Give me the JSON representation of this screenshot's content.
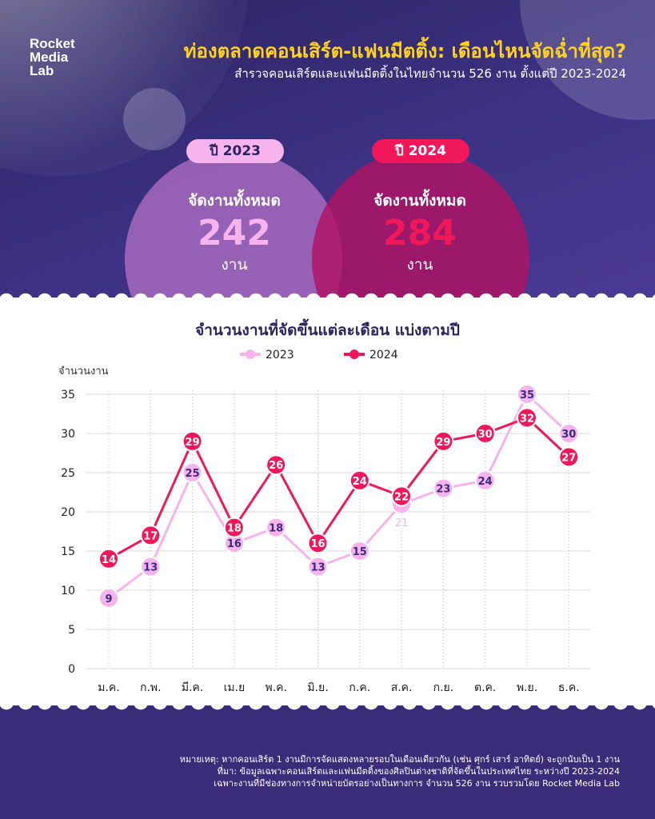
{
  "brand": {
    "logo_lines": [
      "Rocket",
      "Media",
      "Lab"
    ]
  },
  "header": {
    "title": "ท่องตลาดคอนเสิร์ต-แฟนมีตติ้ง: เดือนไหนจัดฉ่ำที่สุด?",
    "subtitle": "สำรวจคอนเสิร์ตและแฟนมีตติ้งในไทยจำนวน 526 งาน ตั้งแต่ปี 2023-2024"
  },
  "summary": [
    {
      "year_label": "ปี 2023",
      "label": "จัดงานทั้งหมด",
      "total": "242",
      "unit": "งาน",
      "number_color": "#f7b3ee"
    },
    {
      "year_label": "ปี 2024",
      "label": "จัดงานทั้งหมด",
      "total": "284",
      "unit": "งาน",
      "number_color": "#f0185a"
    }
  ],
  "chart_data": {
    "type": "line",
    "title": "จำนวนงานที่จัดขึ้นแต่ละเดือน แบ่งตามปี",
    "ylabel": "จำนวนงาน",
    "xlabel": "",
    "ylim": [
      0,
      35
    ],
    "yticks": [
      0,
      5,
      10,
      15,
      20,
      25,
      30,
      35
    ],
    "grid": true,
    "legend": "top-center",
    "categories": [
      "ม.ค.",
      "ก.พ.",
      "มี.ค.",
      "เม.ย",
      "พ.ค.",
      "มิ.ย.",
      "ก.ค.",
      "ส.ค.",
      "ก.ย.",
      "ต.ค.",
      "พ.ย.",
      "ธ.ค."
    ],
    "series": [
      {
        "name": "2023",
        "color": "#f7b3ee",
        "values": [
          9,
          13,
          25,
          16,
          18,
          13,
          15,
          21,
          23,
          24,
          35,
          30
        ]
      },
      {
        "name": "2024",
        "color": "#f0185a",
        "values": [
          14,
          17,
          29,
          18,
          26,
          16,
          24,
          22,
          29,
          30,
          32,
          27
        ]
      }
    ]
  },
  "notes": [
    "หมายเหตุ: หากคอนเสิร์ต 1 งานมีการจัดแสดงหลายรอบในเดือนเดียวกัน (เช่น ศุกร์ เสาร์ อาทิตย์) จะถูกนับเป็น 1 งาน",
    "ที่มา: ข้อมูลเฉพาะคอนเสิร์ตและแฟนมีตติ้งของศิลปินต่างชาติที่จัดขึ้นในประเทศไทย ระหว่างปี 2023-2024",
    "เฉพาะงานที่มีช่องทางการจำหน่ายบัตรอย่างเป็นทางการ จำนวน 526 งาน รวบรวมโดย Rocket Media Lab"
  ]
}
